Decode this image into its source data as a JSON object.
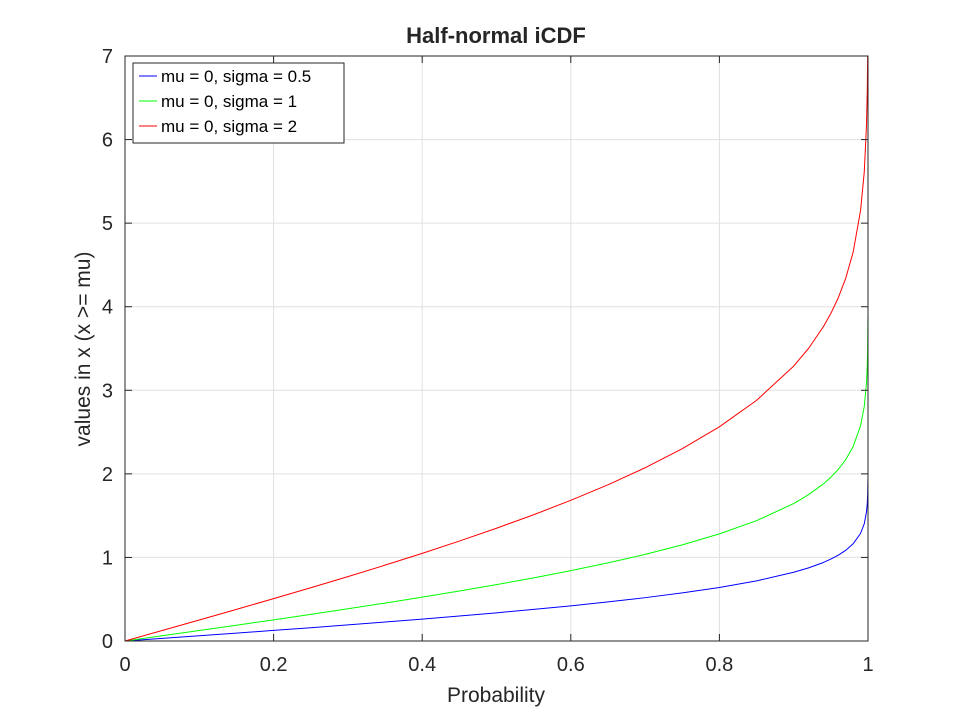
{
  "chart_data": {
    "type": "line",
    "title": "Half-normal iCDF",
    "xlabel": "Probability",
    "ylabel": "values in x (x >= mu)",
    "xlim": [
      0,
      1
    ],
    "ylim": [
      0,
      7
    ],
    "xticks": [
      0,
      0.2,
      0.4,
      0.6,
      0.8,
      1
    ],
    "xtick_labels": [
      "0",
      "0.2",
      "0.4",
      "0.6",
      "0.8",
      "1"
    ],
    "yticks": [
      0,
      1,
      2,
      3,
      4,
      5,
      6,
      7
    ],
    "ytick_labels": [
      "0",
      "1",
      "2",
      "3",
      "4",
      "5",
      "6",
      "7"
    ],
    "grid": true,
    "legend_position": "top-left",
    "series": [
      {
        "name": "mu = 0, sigma = 0.5",
        "color": "#0000ff",
        "x": [
          0,
          0.05,
          0.1,
          0.15,
          0.2,
          0.25,
          0.3,
          0.35,
          0.4,
          0.45,
          0.5,
          0.55,
          0.6,
          0.65,
          0.7,
          0.75,
          0.8,
          0.85,
          0.9,
          0.92,
          0.94,
          0.95,
          0.96,
          0.97,
          0.98,
          0.99,
          0.995,
          0.998,
          0.999,
          0.9995,
          0.9999
        ],
        "y": [
          0,
          0.0313,
          0.0628,
          0.0947,
          0.1267,
          0.1593,
          0.1926,
          0.2269,
          0.2621,
          0.2986,
          0.3372,
          0.3782,
          0.4208,
          0.4676,
          0.5182,
          0.5752,
          0.6408,
          0.7198,
          0.8224,
          0.8752,
          0.9396,
          0.98,
          1.0269,
          1.085,
          1.1632,
          1.2879,
          1.4033,
          1.5451,
          1.6453,
          1.7404,
          1.945
        ]
      },
      {
        "name": "mu = 0, sigma = 1",
        "color": "#00ff00",
        "x": [
          0,
          0.05,
          0.1,
          0.15,
          0.2,
          0.25,
          0.3,
          0.35,
          0.4,
          0.45,
          0.5,
          0.55,
          0.6,
          0.65,
          0.7,
          0.75,
          0.8,
          0.85,
          0.9,
          0.92,
          0.94,
          0.95,
          0.96,
          0.97,
          0.98,
          0.99,
          0.995,
          0.998,
          0.999,
          0.9995,
          0.9999
        ],
        "y": [
          0,
          0.0627,
          0.1257,
          0.1891,
          0.2533,
          0.3186,
          0.3853,
          0.4538,
          0.5244,
          0.5978,
          0.6745,
          0.7554,
          0.8416,
          0.9346,
          1.0364,
          1.1503,
          1.2816,
          1.4395,
          1.6449,
          1.7507,
          1.8808,
          1.96,
          2.0537,
          2.1701,
          2.3263,
          2.5758,
          2.807,
          3.0902,
          3.2905,
          3.4808,
          3.8906
        ]
      },
      {
        "name": "mu = 0, sigma = 2",
        "color": "#ff0000",
        "x": [
          0,
          0.05,
          0.1,
          0.15,
          0.2,
          0.25,
          0.3,
          0.35,
          0.4,
          0.45,
          0.5,
          0.55,
          0.6,
          0.65,
          0.7,
          0.75,
          0.8,
          0.85,
          0.9,
          0.92,
          0.94,
          0.95,
          0.96,
          0.97,
          0.98,
          0.99,
          0.995,
          0.998,
          0.999,
          0.9995,
          0.9999
        ],
        "y": [
          0,
          0.1254,
          0.2513,
          0.3782,
          0.5067,
          0.6372,
          0.7706,
          0.9076,
          1.0488,
          1.1956,
          1.349,
          1.5108,
          1.6832,
          1.8692,
          2.0729,
          2.3007,
          2.5631,
          2.8791,
          3.2897,
          3.5014,
          3.7616,
          3.9199,
          4.1075,
          4.3402,
          4.6527,
          5.1517,
          5.614,
          6.1805,
          6.581,
          6.9617,
          7.7812
        ]
      }
    ]
  }
}
